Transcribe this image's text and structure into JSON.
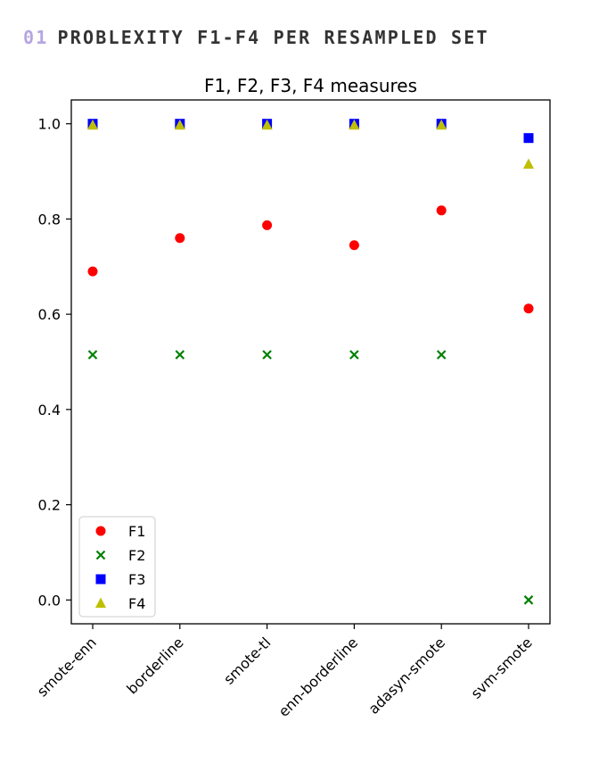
{
  "section": {
    "number": "01",
    "title": "PROBLEXITY F1-F4 PER RESAMPLED SET"
  },
  "chart_data": {
    "type": "scatter",
    "title": "F1, F2, F3, F4 measures",
    "xlabel": "",
    "ylabel": "",
    "categories": [
      "smote-enn",
      "borderline",
      "smote-tl",
      "enn-borderline",
      "adasyn-smote",
      "svm-smote"
    ],
    "ylim": [
      -0.05,
      1.05
    ],
    "yticks": [
      0.0,
      0.2,
      0.4,
      0.6,
      0.8,
      1.0
    ],
    "ytick_labels": [
      "0.0",
      "0.2",
      "0.4",
      "0.6",
      "0.8",
      "1.0"
    ],
    "grid": false,
    "legend_position": "lower-left",
    "series": [
      {
        "name": "F1",
        "marker": "circle",
        "color": "#ff0000",
        "values": [
          0.69,
          0.76,
          0.787,
          0.745,
          0.818,
          0.612
        ]
      },
      {
        "name": "F2",
        "marker": "x",
        "color": "#008000",
        "values": [
          0.515,
          0.515,
          0.515,
          0.515,
          0.515,
          0.0
        ]
      },
      {
        "name": "F3",
        "marker": "square",
        "color": "#0000ff",
        "values": [
          1.0,
          1.0,
          1.0,
          1.0,
          1.0,
          0.97
        ]
      },
      {
        "name": "F4",
        "marker": "triangle",
        "color": "#bfbf00",
        "values": [
          0.997,
          0.997,
          0.997,
          0.997,
          0.997,
          0.915
        ]
      }
    ]
  }
}
